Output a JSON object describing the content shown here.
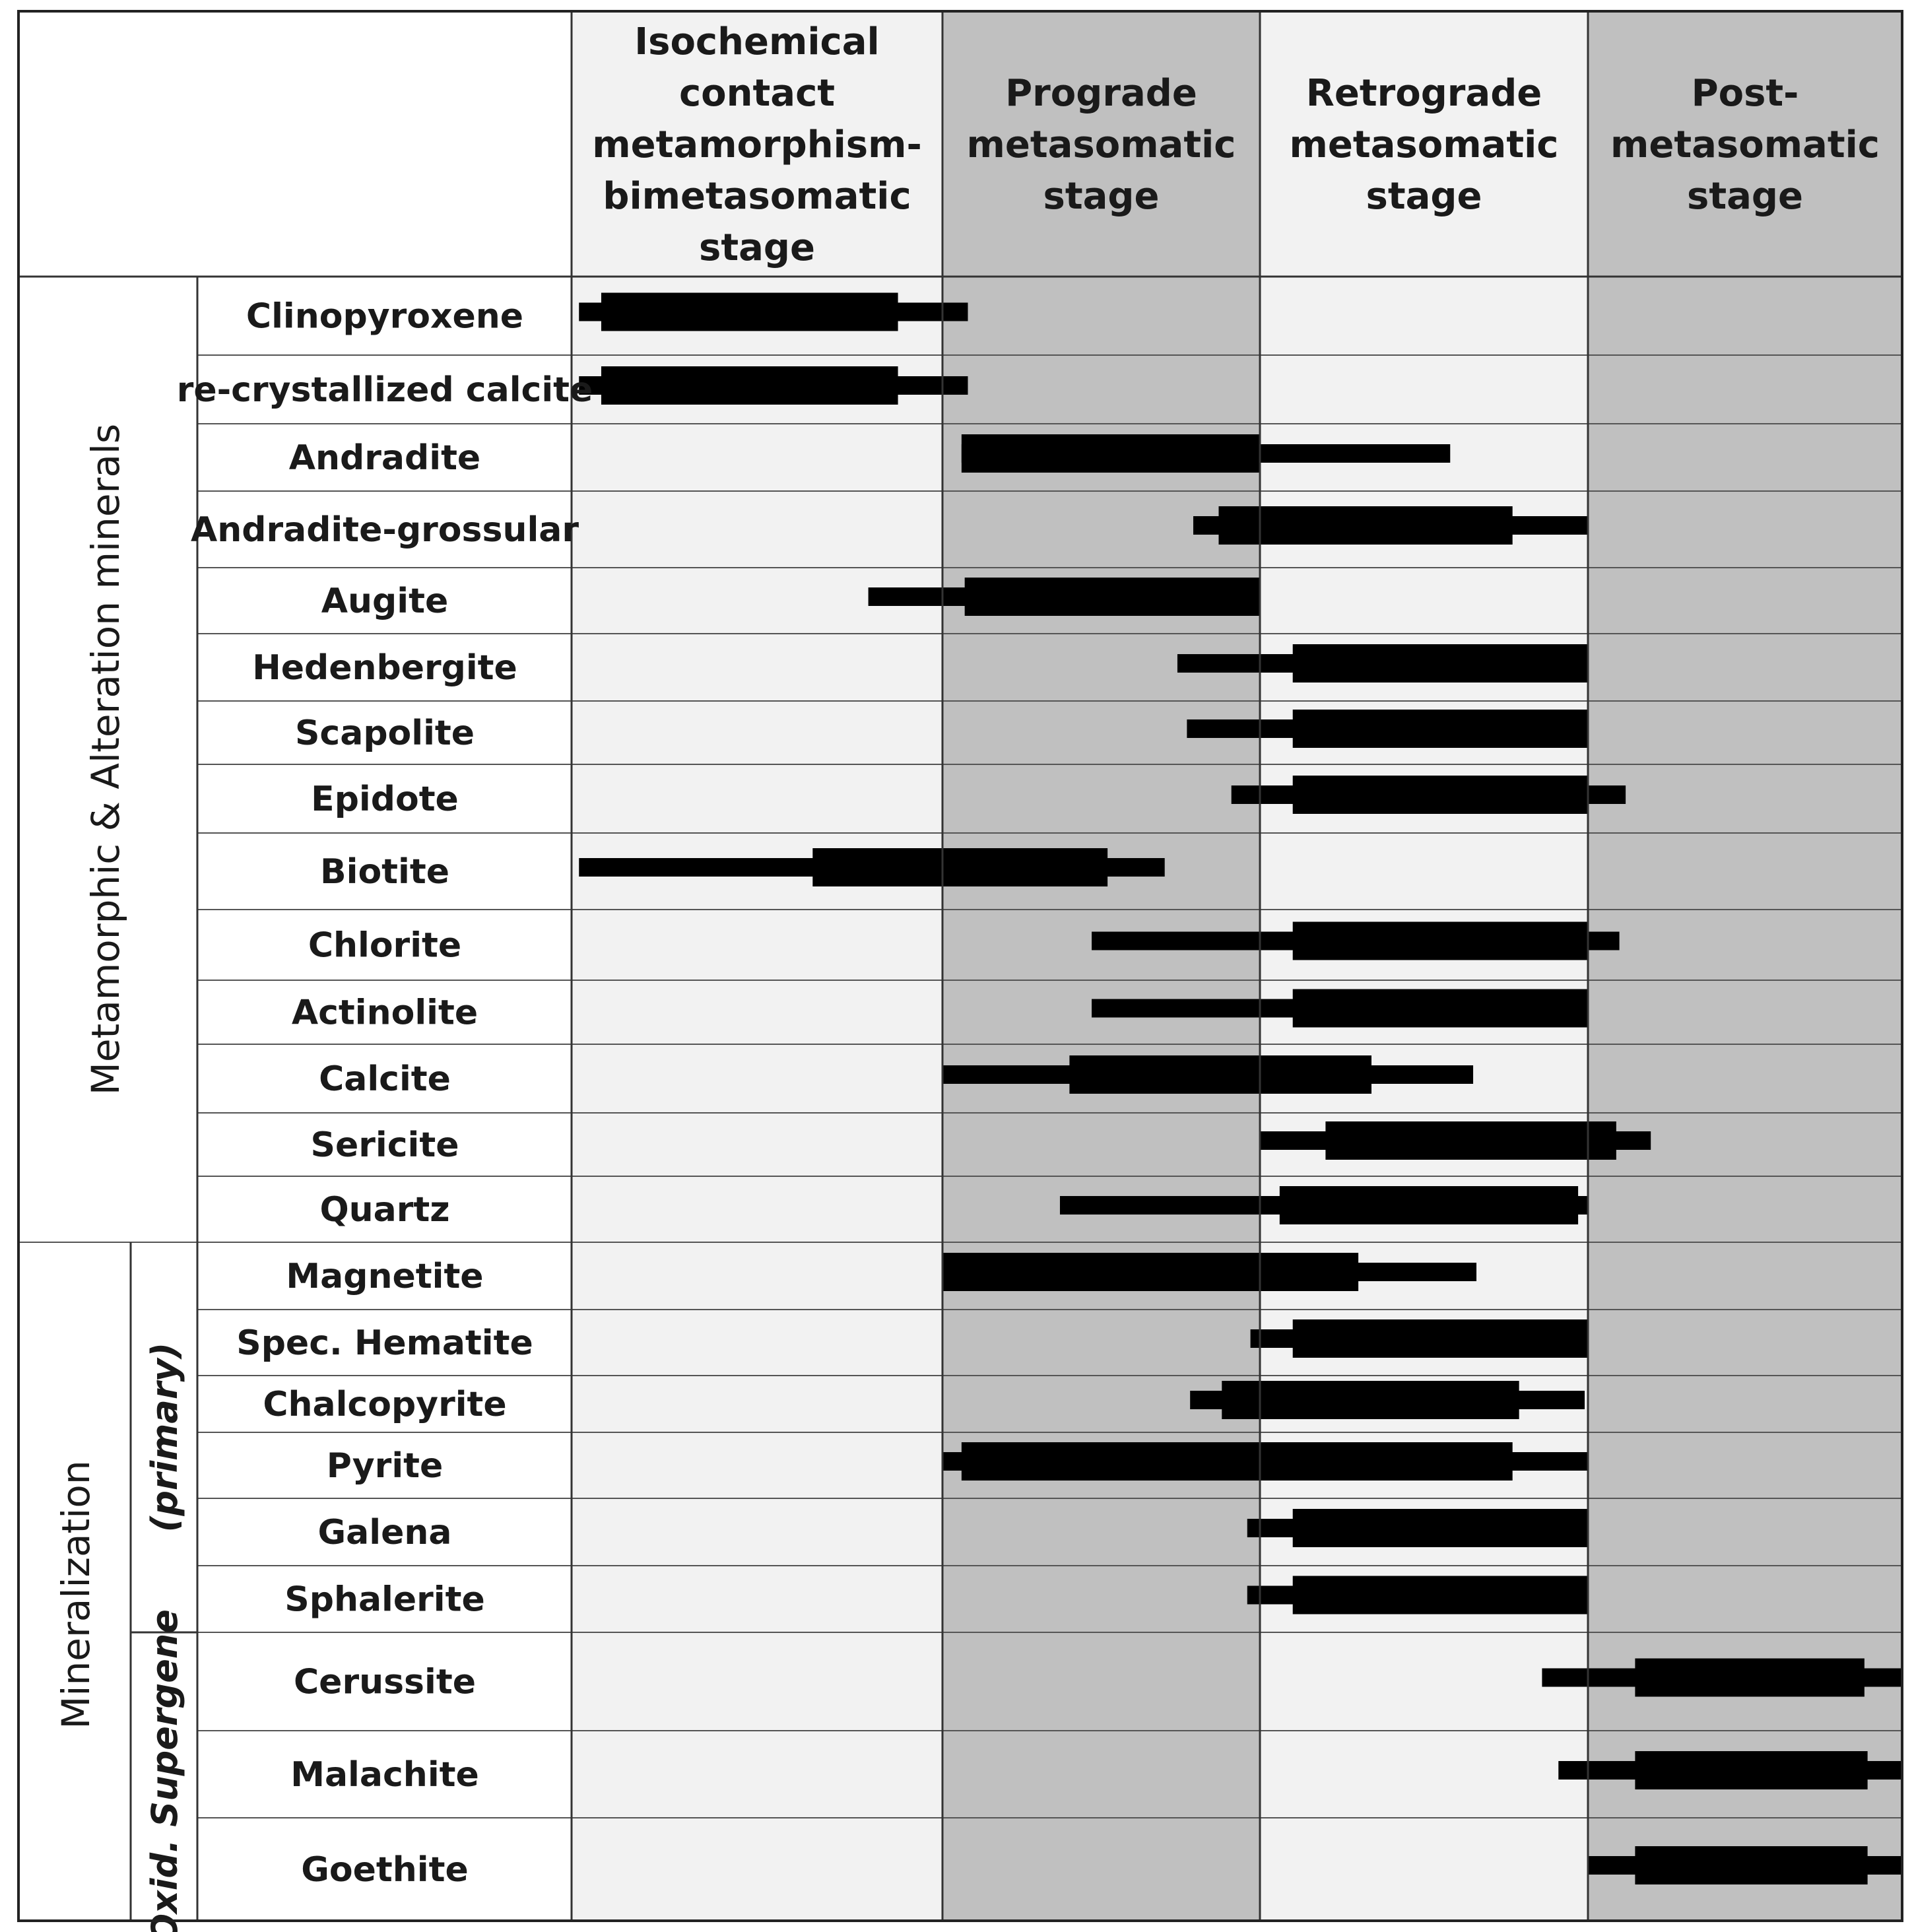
{
  "stages": [
    {
      "id": "iso",
      "lines": [
        "Isochemical",
        "contact",
        "metamorphism-",
        "bimetasomatic",
        "stage"
      ]
    },
    {
      "id": "pro",
      "lines": [
        "Prograde",
        "metasomatic",
        "stage"
      ]
    },
    {
      "id": "ret",
      "lines": [
        "Retrograde",
        "metasomatic",
        "stage"
      ]
    },
    {
      "id": "post",
      "lines": [
        "Post-",
        "metasomatic",
        "stage"
      ]
    }
  ],
  "groups": [
    {
      "id": "metamorphic",
      "label": "Metamorphic & Alteration minerals"
    },
    {
      "id": "mineralization",
      "label": "Mineralization"
    }
  ],
  "subgroups": [
    {
      "id": "primary",
      "label": "(primary)"
    },
    {
      "id": "supergene",
      "label": "Oxid. Supergene"
    }
  ],
  "chart_data": {
    "type": "paragenetic-sequence",
    "time_axis": "stage (start 0 = Isochemical contact metamorphism-bimetasomatic stage, 4 = end of Post-metasomatic stage)",
    "stages": [
      "Isochemical contact metamorphism-bimetasomatic stage",
      "Prograde metasomatic stage",
      "Retrograde metasomatic stage",
      "Post-metasomatic stage"
    ],
    "minerals": [
      {
        "name": "Clinopyroxene",
        "group": "Metamorphic & Alteration minerals",
        "minor": [
          0.02,
          1.08
        ],
        "major": [
          0.08,
          0.88
        ]
      },
      {
        "name": "re-crystallized calcite",
        "group": "Metamorphic & Alteration minerals",
        "minor": [
          0.02,
          1.08
        ],
        "major": [
          0.08,
          0.88
        ]
      },
      {
        "name": "Andradite",
        "group": "Metamorphic & Alteration minerals",
        "minor": [
          1.06,
          2.58
        ],
        "major": [
          1.06,
          2.0
        ]
      },
      {
        "name": "Andradite-grossular",
        "group": "Metamorphic & Alteration minerals",
        "minor": [
          1.79,
          3.0
        ],
        "major": [
          1.87,
          2.77
        ]
      },
      {
        "name": "Augite",
        "group": "Metamorphic & Alteration minerals",
        "minor": [
          0.8,
          2.0
        ],
        "major": [
          1.07,
          2.0
        ]
      },
      {
        "name": "Hedenbergite",
        "group": "Metamorphic & Alteration minerals",
        "minor": [
          1.74,
          3.0
        ],
        "major": [
          2.1,
          3.0
        ]
      },
      {
        "name": "Scapolite",
        "group": "Metamorphic & Alteration minerals",
        "minor": [
          1.77,
          3.0
        ],
        "major": [
          2.1,
          3.0
        ]
      },
      {
        "name": "Epidote",
        "group": "Metamorphic & Alteration minerals",
        "minor": [
          1.91,
          3.12
        ],
        "major": [
          2.1,
          3.0
        ]
      },
      {
        "name": "Biotite",
        "group": "Metamorphic & Alteration minerals",
        "minor": [
          0.02,
          1.7
        ],
        "major": [
          0.65,
          1.52
        ]
      },
      {
        "name": "Chlorite",
        "group": "Metamorphic & Alteration minerals",
        "minor": [
          1.47,
          3.1
        ],
        "major": [
          2.1,
          3.0
        ]
      },
      {
        "name": "Actinolite",
        "group": "Metamorphic & Alteration minerals",
        "minor": [
          1.47,
          3.0
        ],
        "major": [
          2.1,
          3.0
        ]
      },
      {
        "name": "Calcite",
        "group": "Metamorphic & Alteration minerals",
        "minor": [
          1.0,
          2.65
        ],
        "major": [
          1.4,
          2.34
        ]
      },
      {
        "name": "Sericite",
        "group": "Metamorphic & Alteration minerals",
        "minor": [
          2.0,
          3.2
        ],
        "major": [
          2.2,
          3.09
        ]
      },
      {
        "name": "Quartz",
        "group": "Metamorphic & Alteration minerals",
        "minor": [
          1.37,
          3.0
        ],
        "major": [
          2.06,
          2.97
        ]
      },
      {
        "name": "Magnetite",
        "group": "Mineralization (primary)",
        "minor": [
          1.0,
          2.66
        ],
        "major": [
          1.0,
          2.3
        ]
      },
      {
        "name": "Spec. Hematite",
        "group": "Mineralization (primary)",
        "minor": [
          1.97,
          3.0
        ],
        "major": [
          2.1,
          3.0
        ]
      },
      {
        "name": "Chalcopyrite",
        "group": "Mineralization (primary)",
        "minor": [
          1.78,
          2.99
        ],
        "major": [
          1.88,
          2.79
        ]
      },
      {
        "name": "Pyrite",
        "group": "Mineralization (primary)",
        "minor": [
          1.0,
          3.0
        ],
        "major": [
          1.06,
          2.77
        ]
      },
      {
        "name": "Galena",
        "group": "Mineralization (primary)",
        "minor": [
          1.96,
          3.0
        ],
        "major": [
          2.1,
          3.0
        ]
      },
      {
        "name": "Sphalerite",
        "group": "Mineralization (primary)",
        "minor": [
          1.96,
          3.0
        ],
        "major": [
          2.1,
          3.0
        ]
      },
      {
        "name": "Cerussite",
        "group": "Mineralization (Oxid. Supergene)",
        "minor": [
          2.86,
          4.0
        ],
        "major": [
          3.15,
          3.88
        ]
      },
      {
        "name": "Malachite",
        "group": "Mineralization (Oxid. Supergene)",
        "minor": [
          2.91,
          4.0
        ],
        "major": [
          3.15,
          3.89
        ]
      },
      {
        "name": "Goethite",
        "group": "Mineralization (Oxid. Supergene)",
        "minor": [
          3.0,
          4.0
        ],
        "major": [
          3.15,
          3.89
        ]
      }
    ],
    "stage_colors": [
      "#f2f2f2",
      "#c0c0c0",
      "#f2f2f2",
      "#c0c0c0"
    ],
    "bar_color": "#000000"
  }
}
